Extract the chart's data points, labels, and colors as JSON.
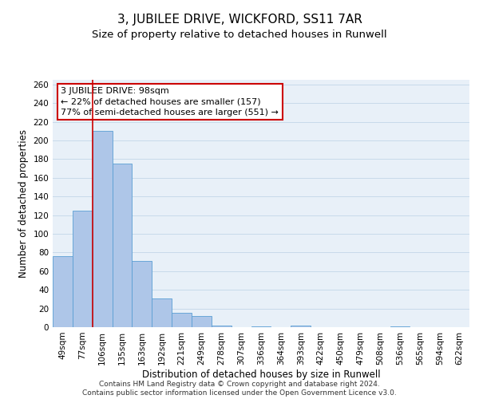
{
  "title": "3, JUBILEE DRIVE, WICKFORD, SS11 7AR",
  "subtitle": "Size of property relative to detached houses in Runwell",
  "xlabel": "Distribution of detached houses by size in Runwell",
  "ylabel": "Number of detached properties",
  "categories": [
    "49sqm",
    "77sqm",
    "106sqm",
    "135sqm",
    "163sqm",
    "192sqm",
    "221sqm",
    "249sqm",
    "278sqm",
    "307sqm",
    "336sqm",
    "364sqm",
    "393sqm",
    "422sqm",
    "450sqm",
    "479sqm",
    "508sqm",
    "536sqm",
    "565sqm",
    "594sqm",
    "622sqm"
  ],
  "values": [
    76,
    125,
    210,
    175,
    71,
    31,
    15,
    12,
    2,
    0,
    1,
    0,
    2,
    0,
    0,
    0,
    0,
    1,
    0,
    0,
    0
  ],
  "bar_color": "#aec6e8",
  "bar_edge_color": "#5a9fd4",
  "red_line_x": 1.5,
  "red_line_color": "#cc0000",
  "annotation_text": "3 JUBILEE DRIVE: 98sqm\n← 22% of detached houses are smaller (157)\n77% of semi-detached houses are larger (551) →",
  "annotation_box_color": "#ffffff",
  "annotation_box_edge_color": "#cc0000",
  "ylim": [
    0,
    265
  ],
  "yticks": [
    0,
    20,
    40,
    60,
    80,
    100,
    120,
    140,
    160,
    180,
    200,
    220,
    240,
    260
  ],
  "grid_color": "#c8daea",
  "background_color": "#e8f0f8",
  "footer_line1": "Contains HM Land Registry data © Crown copyright and database right 2024.",
  "footer_line2": "Contains public sector information licensed under the Open Government Licence v3.0.",
  "title_fontsize": 11,
  "subtitle_fontsize": 9.5,
  "annotation_fontsize": 8,
  "tick_fontsize": 7.5,
  "ylabel_fontsize": 8.5,
  "xlabel_fontsize": 8.5,
  "footer_fontsize": 6.5
}
